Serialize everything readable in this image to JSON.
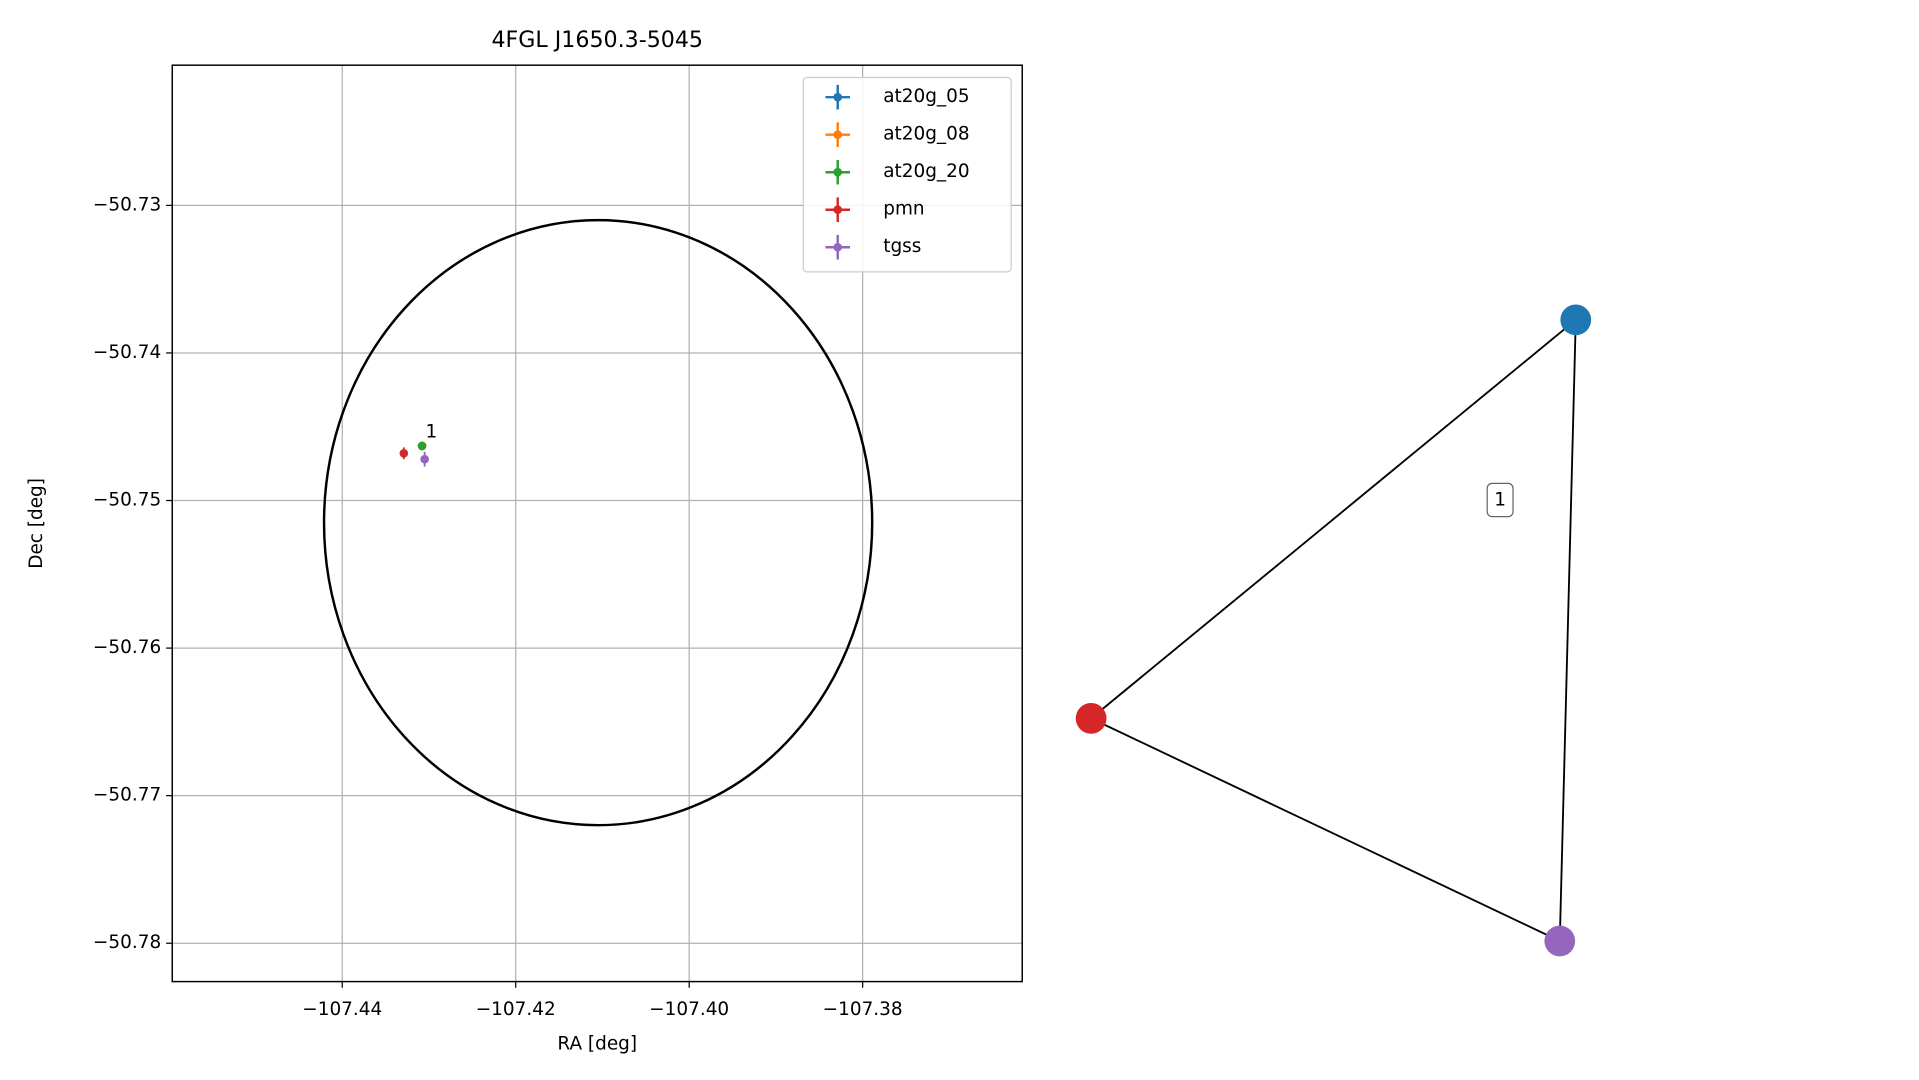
{
  "chart_data": [
    {
      "type": "scatter",
      "title": "4FGL J1650.3-5045",
      "xlabel": "RA [deg]",
      "ylabel": "Dec [deg]",
      "xlim": [
        -107.4596,
        -107.3616
      ],
      "ylim": [
        -50.7826,
        -50.7205
      ],
      "grid": true,
      "legend": "upper right",
      "xticks": [
        {
          "value": -107.44,
          "label": "−107.44"
        },
        {
          "value": -107.42,
          "label": "−107.42"
        },
        {
          "value": -107.4,
          "label": "−107.40"
        },
        {
          "value": -107.38,
          "label": "−107.38"
        }
      ],
      "yticks": [
        {
          "value": -50.73,
          "label": "−50.73"
        },
        {
          "value": -50.74,
          "label": "−50.74"
        },
        {
          "value": -50.75,
          "label": "−50.75"
        },
        {
          "value": -50.76,
          "label": "−50.76"
        },
        {
          "value": -50.77,
          "label": "−50.77"
        },
        {
          "value": -50.78,
          "label": "−50.78"
        }
      ],
      "series": [
        {
          "name": "at20g_05",
          "color": "#1f77b4",
          "x": [
            -107.4308
          ],
          "values": [
            -50.7463
          ],
          "xerr": [
            0.0002
          ],
          "yerr": [
            0.0002
          ]
        },
        {
          "name": "at20g_08",
          "color": "#ff7f0e",
          "x": [
            -107.4308
          ],
          "values": [
            -50.7463
          ],
          "xerr": [
            0.0002
          ],
          "yerr": [
            0.0002
          ]
        },
        {
          "name": "at20g_20",
          "color": "#2ca02c",
          "x": [
            -107.4308
          ],
          "values": [
            -50.7463
          ],
          "xerr": [
            0.0002
          ],
          "yerr": [
            0.0002
          ]
        },
        {
          "name": "pmn",
          "color": "#d62728",
          "x": [
            -107.4329
          ],
          "values": [
            -50.7468
          ],
          "xerr": [
            0.0002
          ],
          "yerr": [
            0.0004
          ]
        },
        {
          "name": "tgss",
          "color": "#9467bd",
          "x": [
            -107.4305
          ],
          "values": [
            -50.7472
          ],
          "xerr": [
            0.0002
          ],
          "yerr": [
            0.0005
          ]
        }
      ],
      "ellipse": {
        "x": -107.4105,
        "y": -50.7515,
        "rx": 0.0316,
        "ry": 0.0205,
        "color": "#000000"
      },
      "annotations": [
        {
          "text": "1",
          "x": -107.4304,
          "y": -50.7454
        }
      ]
    },
    {
      "type": "graph",
      "node_colors": [
        "#1f77b4",
        "#d62728",
        "#9467bd"
      ],
      "edges": [
        [
          0,
          1
        ],
        [
          0,
          2
        ],
        [
          1,
          2
        ]
      ],
      "edge_labels": [
        "1"
      ]
    }
  ]
}
